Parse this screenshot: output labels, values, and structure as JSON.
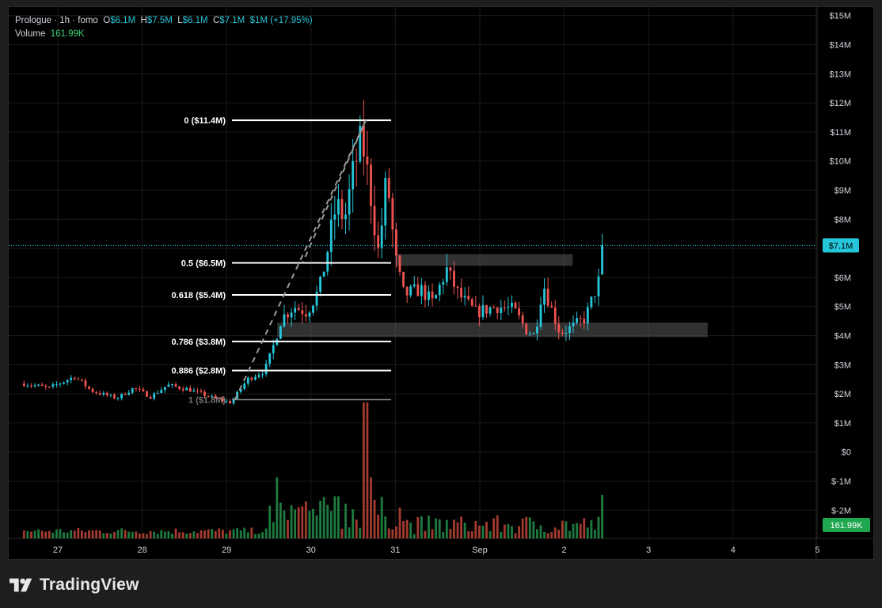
{
  "legend": {
    "symbol": "Prologue · 1h · fomo",
    "o_label": "O",
    "o_value": "$6.1M",
    "h_label": "H",
    "h_value": "$7.5M",
    "l_label": "L",
    "l_value": "$6.1M",
    "c_label": "C",
    "c_value": "$7.1M",
    "change": "$1M (+17.95%)",
    "volume_label": "Volume",
    "volume_value": "161.99K"
  },
  "price_badge": "$7.1M",
  "volume_badge": "161.99K",
  "footer": {
    "brand": "TradingView"
  },
  "colors": {
    "up": "#26c6da",
    "down": "#ef5350",
    "vol_up": "#1f7a3f",
    "vol_down": "#a33a2e",
    "badge_price": "#26c6da",
    "badge_volume": "#1fa74f"
  },
  "chart_data": {
    "type": "candlestick",
    "y_axis": {
      "ticks": [
        "$15M",
        "$14M",
        "$13M",
        "$12M",
        "$11M",
        "$10M",
        "$9M",
        "$8M",
        "$7M",
        "$6M",
        "$5M",
        "$4M",
        "$3M",
        "$2M",
        "$1M",
        "$0",
        "$-1M",
        "$-2M"
      ],
      "tick_values": [
        15,
        14,
        13,
        12,
        11,
        10,
        9,
        8,
        7,
        6,
        5,
        4,
        3,
        2,
        1,
        0,
        -1,
        -2
      ],
      "unit": "$M"
    },
    "x_axis": {
      "ticks": [
        "27",
        "28",
        "29",
        "30",
        "31",
        "Sep",
        "2",
        "3",
        "4",
        "5"
      ]
    },
    "last_price": 7.1,
    "fib_levels": [
      {
        "label": "0 ($11.4M)",
        "value": 11.4
      },
      {
        "label": "0.5 ($6.5M)",
        "value": 6.5
      },
      {
        "label": "0.618 ($5.4M)",
        "value": 5.4
      },
      {
        "label": "0.786 ($3.8M)",
        "value": 3.8
      },
      {
        "label": "0.886 ($2.8M)",
        "value": 2.8
      },
      {
        "label": "1 ($1.8M)",
        "value": 1.8
      }
    ],
    "zones": [
      {
        "from_day": 31.0,
        "to_day": 33.1,
        "low": 6.4,
        "high": 6.8
      },
      {
        "from_day": 29.6,
        "to_day": 34.7,
        "low": 3.95,
        "high": 4.45
      }
    ],
    "path_points": [
      {
        "day": 29.1,
        "price": 1.8
      },
      {
        "day": 30.65,
        "price": 11.4
      },
      {
        "day": 29.9,
        "price": 6.5
      }
    ],
    "price_anchors": [
      [
        26.6,
        2.35
      ],
      [
        26.9,
        2.2
      ],
      [
        27.2,
        2.6
      ],
      [
        27.4,
        2.1
      ],
      [
        27.7,
        1.85
      ],
      [
        27.9,
        2.2
      ],
      [
        28.1,
        1.9
      ],
      [
        28.3,
        2.3
      ],
      [
        28.55,
        2.15
      ],
      [
        28.8,
        1.9
      ],
      [
        29.05,
        1.7
      ],
      [
        29.25,
        2.5
      ],
      [
        29.45,
        2.8
      ],
      [
        29.55,
        3.6
      ],
      [
        29.65,
        4.6
      ],
      [
        29.8,
        5.0
      ],
      [
        29.95,
        4.8
      ],
      [
        30.1,
        5.6
      ],
      [
        30.2,
        7.0
      ],
      [
        30.3,
        8.5
      ],
      [
        30.4,
        8.0
      ],
      [
        30.5,
        9.6
      ],
      [
        30.6,
        10.8
      ],
      [
        30.7,
        9.0
      ],
      [
        30.8,
        6.8
      ],
      [
        30.9,
        9.5
      ],
      [
        31.0,
        6.6
      ],
      [
        31.1,
        5.4
      ],
      [
        31.3,
        5.6
      ],
      [
        31.45,
        5.1
      ],
      [
        31.6,
        6.3
      ],
      [
        31.75,
        5.4
      ],
      [
        31.95,
        4.8
      ],
      [
        32.2,
        5.0
      ],
      [
        32.4,
        4.9
      ],
      [
        32.55,
        4.2
      ],
      [
        32.65,
        4.0
      ],
      [
        32.75,
        5.8
      ],
      [
        32.85,
        4.9
      ],
      [
        32.95,
        4.1
      ],
      [
        33.1,
        4.3
      ],
      [
        33.25,
        4.6
      ],
      [
        33.35,
        5.4
      ],
      [
        33.45,
        6.2
      ]
    ],
    "volume_spikes": [
      {
        "day": 29.6,
        "volume_rel": 0.45,
        "up": true
      },
      {
        "day": 30.3,
        "volume_rel": 0.31,
        "up": true
      },
      {
        "day": 30.65,
        "volume_rel": 1.0,
        "up": false
      },
      {
        "day": 30.7,
        "volume_rel": 0.45,
        "up": true
      },
      {
        "day": 33.45,
        "volume_rel": 0.32,
        "up": true
      }
    ]
  }
}
